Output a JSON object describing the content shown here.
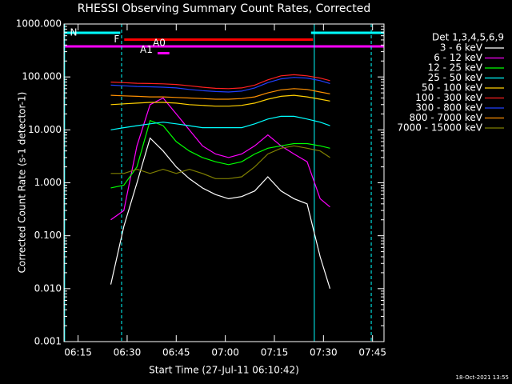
{
  "chart_data": {
    "type": "line",
    "title": "RHESSI Observing Summary Count Rates, Corrected",
    "xlabel": "Start Time (27-Jul-11 06:10:42)",
    "ylabel": "Corrected Count Rate (s-1 detector-1)",
    "legend_title": "Det 1,3,4,5,6,9",
    "footer": "18-Oct-2021 13:55",
    "log_y": true,
    "xlim": [
      370.7,
      468.5
    ],
    "ylim": [
      0.001,
      1000
    ],
    "xticks": [
      {
        "value": 375,
        "label": "06:15"
      },
      {
        "value": 390,
        "label": "06:30"
      },
      {
        "value": 405,
        "label": "06:45"
      },
      {
        "value": 420,
        "label": "07:00"
      },
      {
        "value": 435,
        "label": "07:15"
      },
      {
        "value": 450,
        "label": "07:30"
      },
      {
        "value": 465,
        "label": "07:45"
      }
    ],
    "yticks": [
      {
        "value": 1000,
        "label": "1000.000"
      },
      {
        "value": 100,
        "label": "100.000"
      },
      {
        "value": 10,
        "label": "10.000"
      },
      {
        "value": 1,
        "label": "1.000"
      },
      {
        "value": 0.1,
        "label": "0.100"
      },
      {
        "value": 0.01,
        "label": "0.010"
      },
      {
        "value": 0.001,
        "label": "0.001"
      }
    ],
    "x": [
      385,
      389,
      393,
      397,
      401,
      405,
      409,
      413,
      417,
      421,
      425,
      429,
      433,
      437,
      441,
      445,
      449,
      452
    ],
    "series": [
      {
        "name": "3 - 6 keV",
        "color": "#ffffff",
        "values": [
          0.012,
          0.15,
          1.0,
          7,
          4,
          2,
          1.2,
          0.8,
          0.6,
          0.5,
          0.55,
          0.7,
          1.3,
          0.7,
          0.5,
          0.4,
          0.04,
          0.01
        ]
      },
      {
        "name": "6 - 12 keV",
        "color": "#ff00ff",
        "values": [
          0.2,
          0.3,
          5,
          30,
          40,
          20,
          10,
          5,
          3.5,
          3,
          3.5,
          5,
          8,
          5,
          3.5,
          2.5,
          0.5,
          0.35
        ]
      },
      {
        "name": "12 - 25 keV",
        "color": "#00ff00",
        "values": [
          0.8,
          0.9,
          2,
          15,
          12,
          6,
          4,
          3,
          2.5,
          2.2,
          2.5,
          3.5,
          4.5,
          5,
          5.5,
          5.5,
          5,
          4.5
        ]
      },
      {
        "name": "25 - 50 keV",
        "color": "#00ffff",
        "values": [
          10,
          11,
          12,
          13,
          14,
          13,
          12,
          11,
          11,
          11,
          11,
          13,
          16,
          18,
          18,
          16,
          14,
          12
        ]
      },
      {
        "name": "50 - 100 keV",
        "color": "#ffd000",
        "values": [
          30,
          31,
          32,
          33,
          33,
          32,
          30,
          29,
          28,
          28,
          29,
          32,
          38,
          43,
          45,
          42,
          38,
          35
        ]
      },
      {
        "name": "100 - 300 keV",
        "color": "#ff2020",
        "values": [
          80,
          78,
          76,
          75,
          74,
          72,
          68,
          64,
          61,
          60,
          62,
          70,
          88,
          105,
          110,
          105,
          95,
          85
        ]
      },
      {
        "name": "300 - 800 keV",
        "color": "#2040ff",
        "values": [
          70,
          68,
          66,
          65,
          64,
          62,
          58,
          55,
          53,
          52,
          54,
          62,
          78,
          92,
          98,
          95,
          85,
          75
        ]
      },
      {
        "name": "800 - 7000 keV",
        "color": "#ff9000",
        "values": [
          45,
          44,
          43,
          42,
          42,
          41,
          40,
          39,
          38,
          38,
          39,
          42,
          50,
          57,
          60,
          58,
          52,
          48
        ]
      },
      {
        "name": "7000 - 15000 keV",
        "color": "#808000",
        "values": [
          1.5,
          1.5,
          1.8,
          1.5,
          1.8,
          1.5,
          1.8,
          1.5,
          1.2,
          1.2,
          1.3,
          2,
          3.5,
          4.5,
          5,
          4.5,
          4,
          3
        ]
      }
    ],
    "flags": [
      {
        "label": "N",
        "color": "#00ffff",
        "row": 0,
        "start": 370.7,
        "end": 387.9
      },
      {
        "color": "#00ffff",
        "row": 0,
        "start": 446.2,
        "end": 468.5
      },
      {
        "label": "F",
        "color": "#ff0000",
        "row": 1,
        "start": 389.1,
        "end": 446.8
      },
      {
        "color": "#ff00ff",
        "row": 2,
        "start": 370.7,
        "end": 468.5
      },
      {
        "label": "A0",
        "color": "#ff00ff",
        "row": 2,
        "start": 399.3,
        "end": 402.9
      },
      {
        "label": "A1",
        "color": "#ff00ff",
        "row": 3,
        "start": 399.3,
        "end": 402.9
      }
    ],
    "vlines": [
      {
        "x": 370.9,
        "color": "#00ffff",
        "dashed": false
      },
      {
        "x": 388.3,
        "color": "#00ffff",
        "dashed": true
      },
      {
        "x": 447.2,
        "color": "#00ffff",
        "dashed": false
      },
      {
        "x": 464.6,
        "color": "#00ffff",
        "dashed": true
      }
    ]
  }
}
